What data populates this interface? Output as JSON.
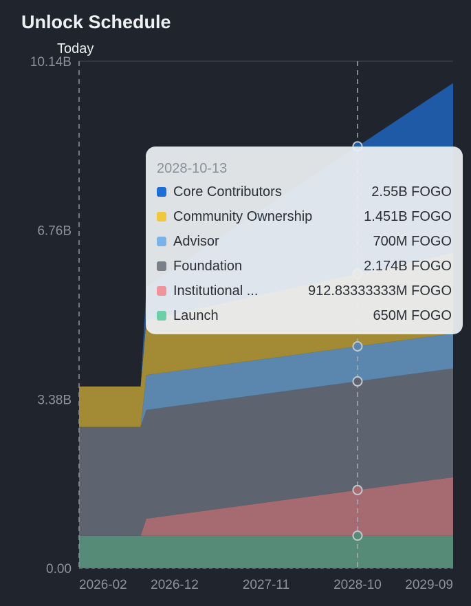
{
  "chart_data": {
    "type": "area",
    "stacked": true,
    "title": "Unlock Schedule",
    "xlabel": "",
    "ylabel": "",
    "x_unit": "months since 2026-01",
    "x": [
      -0.5,
      6.9,
      7.6,
      33,
      44.5
    ],
    "xlim": [
      -0.5,
      44.5
    ],
    "ylim": [
      0,
      10.14
    ],
    "y_unit": "B FOGO",
    "yticks": [
      {
        "value": 0,
        "label": "0.00"
      },
      {
        "value": 3.38,
        "label": "3.38B"
      },
      {
        "value": 6.76,
        "label": "6.76B"
      },
      {
        "value": 10.14,
        "label": "10.14B"
      }
    ],
    "xticks": [
      {
        "value": 1,
        "label": "2026-02"
      },
      {
        "value": 11,
        "label": "2026-12"
      },
      {
        "value": 22,
        "label": "2027-11"
      },
      {
        "value": 33,
        "label": "2028-10"
      },
      {
        "value": 44,
        "label": "2029-09"
      }
    ],
    "grid": "top line only",
    "series": [
      {
        "name": "Launch",
        "fill": "#568c77",
        "swatch": "#6dcfa6",
        "values": [
          0.65,
          0.65,
          0.65,
          0.65,
          0.65
        ]
      },
      {
        "name": "Institutional ...",
        "fill": "#a66b71",
        "swatch": "#f0939a",
        "values": [
          0,
          0,
          0.34,
          0.913,
          1.17
        ]
      },
      {
        "name": "Foundation",
        "fill": "#5d6470",
        "swatch": "#7a808a",
        "values": [
          2.174,
          2.174,
          2.174,
          2.174,
          2.174
        ]
      },
      {
        "name": "Advisor",
        "fill": "#5b86ad",
        "swatch": "#7ab3e6",
        "values": [
          0,
          0,
          0.7,
          0.7,
          0.7
        ]
      },
      {
        "name": "Community Ownership",
        "fill": "#a38b35",
        "swatch": "#f0c93a",
        "values": [
          0.81,
          0.81,
          1.1,
          1.451,
          1.61
        ]
      },
      {
        "name": "Core Contributors",
        "fill": "#1f5aa6",
        "swatch": "#1d6fd6",
        "values": [
          0,
          0,
          0.66,
          2.55,
          3.4
        ]
      }
    ],
    "annotations": [
      {
        "label": "Today",
        "x": -0.5
      }
    ],
    "hover": {
      "x": 33,
      "date": "2028-10-13",
      "rows": [
        {
          "name": "Core Contributors",
          "value": "2.55B FOGO",
          "swatch": "#1d6fd6"
        },
        {
          "name": "Community Ownership",
          "value": "1.451B FOGO",
          "swatch": "#f0c93a"
        },
        {
          "name": "Advisor",
          "value": "700M FOGO",
          "swatch": "#7ab3e6"
        },
        {
          "name": "Foundation",
          "value": "2.174B FOGO",
          "swatch": "#7a808a"
        },
        {
          "name": "Institutional ...",
          "value": "912.83333333M FOGO",
          "swatch": "#f0939a"
        },
        {
          "name": "Launch",
          "value": "650M FOGO",
          "swatch": "#6dcfa6"
        }
      ]
    }
  }
}
